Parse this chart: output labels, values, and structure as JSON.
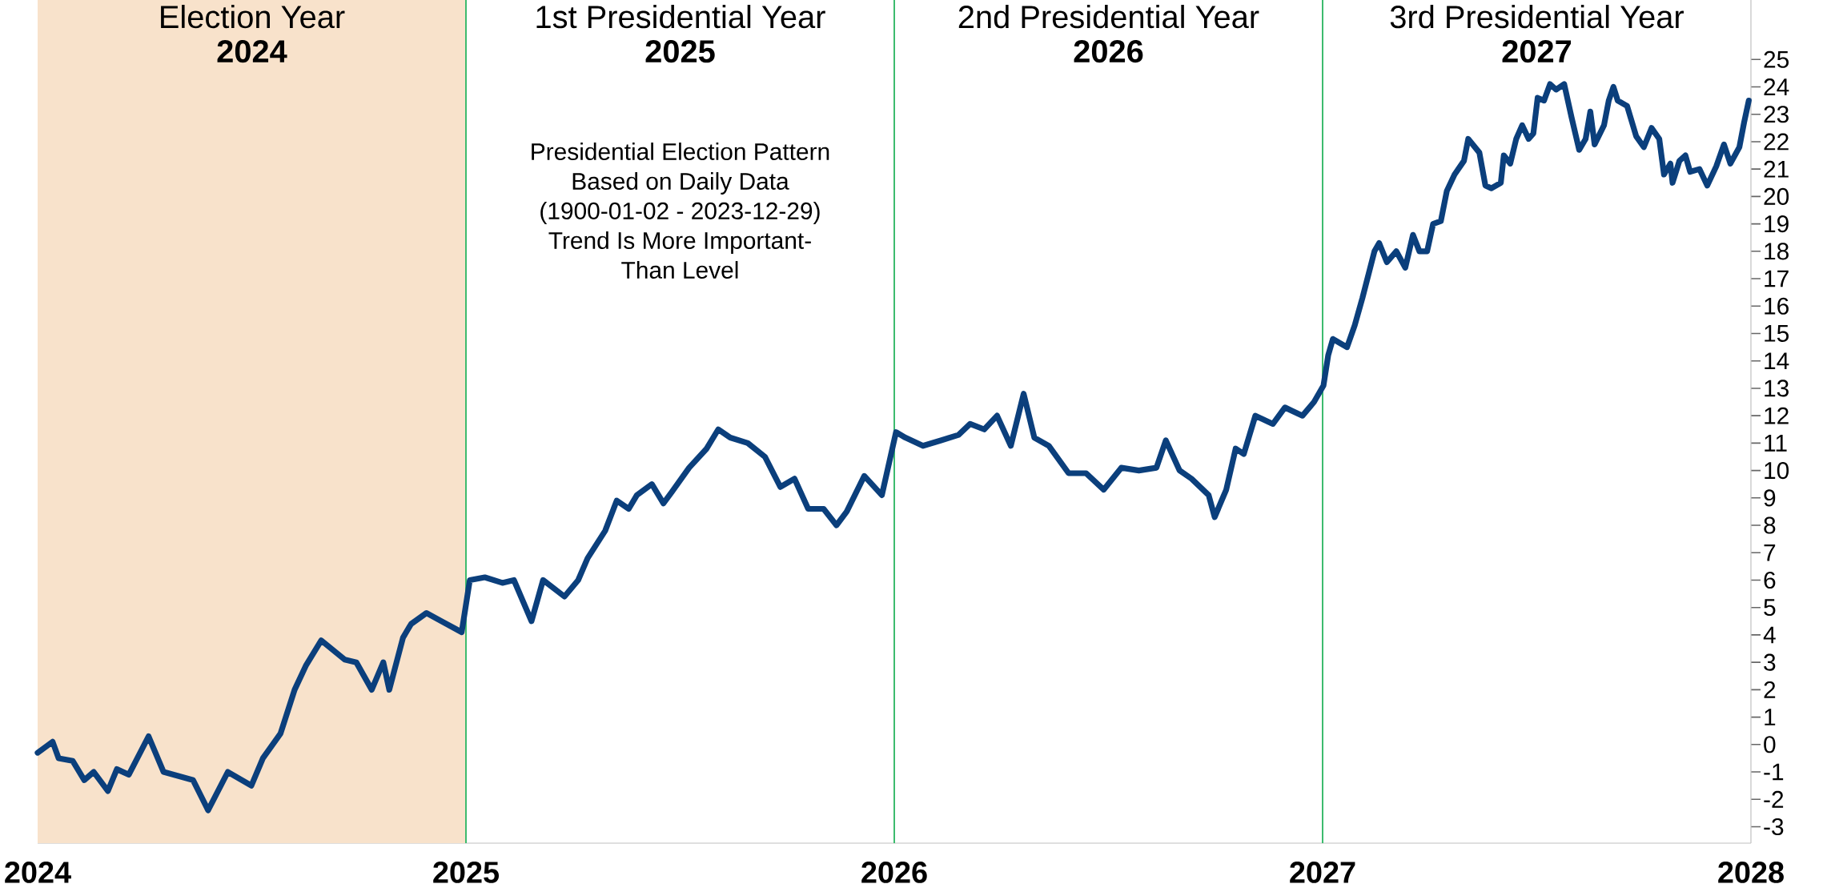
{
  "chart_data": {
    "type": "line",
    "color": "#0b3f7c",
    "x": [
      2024.0,
      2024.035,
      2024.049,
      2024.082,
      2024.109,
      2024.131,
      2024.164,
      2024.185,
      2024.213,
      2024.259,
      2024.294,
      2024.363,
      2024.398,
      2024.444,
      2024.499,
      2024.526,
      2024.567,
      2024.6,
      2024.627,
      2024.662,
      2024.717,
      2024.744,
      2024.78,
      2024.807,
      2024.821,
      2024.853,
      2024.872,
      2024.908,
      2024.943,
      2024.99,
      2025.003,
      2025.009,
      2025.044,
      2025.085,
      2025.112,
      2025.153,
      2025.18,
      2025.23,
      2025.262,
      2025.284,
      2025.325,
      2025.352,
      2025.38,
      2025.399,
      2025.434,
      2025.461,
      2025.48,
      2025.521,
      2025.562,
      2025.589,
      2025.617,
      2025.658,
      2025.698,
      2025.734,
      2025.767,
      2025.799,
      2025.835,
      2025.865,
      2025.889,
      2025.93,
      2025.971,
      2026.004,
      2026.026,
      2026.067,
      2026.109,
      2026.15,
      2026.177,
      2026.21,
      2026.24,
      2026.272,
      2026.302,
      2026.327,
      2026.361,
      2026.407,
      2026.448,
      2026.489,
      2026.53,
      2026.571,
      2026.612,
      2026.634,
      2026.666,
      2026.694,
      2026.734,
      2026.748,
      2026.775,
      2026.797,
      2026.816,
      2026.843,
      2026.884,
      2026.912,
      2026.953,
      2026.98,
      2027.002,
      2027.013,
      2027.024,
      2027.057,
      2027.075,
      2027.093,
      2027.121,
      2027.132,
      2027.15,
      2027.172,
      2027.193,
      2027.211,
      2027.226,
      2027.244,
      2027.258,
      2027.276,
      2027.29,
      2027.308,
      2027.33,
      2027.34,
      2027.366,
      2027.38,
      2027.394,
      2027.416,
      2027.423,
      2027.438,
      2027.452,
      2027.466,
      2027.481,
      2027.492,
      2027.502,
      2027.517,
      2027.531,
      2027.545,
      2027.564,
      2027.581,
      2027.599,
      2027.614,
      2027.625,
      2027.635,
      2027.657,
      2027.668,
      2027.679,
      2027.689,
      2027.711,
      2027.732,
      2027.75,
      2027.768,
      2027.786,
      2027.797,
      2027.812,
      2027.817,
      2027.833,
      2027.847,
      2027.858,
      2027.88,
      2027.898,
      2027.919,
      2027.937,
      2027.952,
      2027.973,
      2027.984,
      2027.995
    ],
    "values": [
      -0.3,
      0.1,
      -0.5,
      -0.6,
      -1.3,
      -1.0,
      -1.7,
      -0.9,
      -1.1,
      0.3,
      -1.0,
      -1.3,
      -2.4,
      -1.0,
      -1.5,
      -0.5,
      0.4,
      2.0,
      2.9,
      3.8,
      3.1,
      3.0,
      2.0,
      3.0,
      2.0,
      3.9,
      4.4,
      4.8,
      4.5,
      4.1,
      5.4,
      6.0,
      6.1,
      5.9,
      6.0,
      4.5,
      6.0,
      5.4,
      6.0,
      6.8,
      7.8,
      8.9,
      8.6,
      9.1,
      9.5,
      8.8,
      9.2,
      10.1,
      10.8,
      11.5,
      11.2,
      11.0,
      10.5,
      9.4,
      9.7,
      8.6,
      8.6,
      8.0,
      8.5,
      9.8,
      9.1,
      11.4,
      11.2,
      10.9,
      11.1,
      11.3,
      11.7,
      11.5,
      12.0,
      10.9,
      12.8,
      11.2,
      10.9,
      9.9,
      9.9,
      9.3,
      10.1,
      10.0,
      10.1,
      11.1,
      10.0,
      9.7,
      9.1,
      8.3,
      9.3,
      10.8,
      10.6,
      12.0,
      11.7,
      12.3,
      12.0,
      12.5,
      13.1,
      14.2,
      14.8,
      14.5,
      15.3,
      16.3,
      18.0,
      18.3,
      17.6,
      18.0,
      17.4,
      18.6,
      18.0,
      18.0,
      19.0,
      19.1,
      20.2,
      20.8,
      21.3,
      22.1,
      21.6,
      20.4,
      20.3,
      20.5,
      21.5,
      21.2,
      22.1,
      22.6,
      22.1,
      22.3,
      23.6,
      23.5,
      24.1,
      23.9,
      24.1,
      22.9,
      21.7,
      22.1,
      23.1,
      21.9,
      22.6,
      23.5,
      24.0,
      23.5,
      23.3,
      22.2,
      21.8,
      22.5,
      22.1,
      20.8,
      21.2,
      20.5,
      21.3,
      21.5,
      20.9,
      21.0,
      20.4,
      21.1,
      21.9,
      21.2,
      21.8,
      22.7,
      23.5
    ],
    "xlim": [
      2024,
      2028
    ],
    "ylim": [
      -3.6,
      27.2
    ],
    "xticks": [
      2024,
      2025,
      2026,
      2027,
      2028
    ],
    "yticks": [
      -3,
      -2,
      -1,
      0,
      1,
      2,
      3,
      4,
      5,
      6,
      7,
      8,
      9,
      10,
      11,
      12,
      13,
      14,
      15,
      16,
      17,
      18,
      19,
      20,
      21,
      22,
      23,
      24,
      25
    ],
    "bands": [
      {
        "axis": "x",
        "from": 2024,
        "to": 2025,
        "color": "#f8e2cb"
      }
    ],
    "ref_lines": [
      {
        "axis": "x",
        "value": 2025,
        "color": "#3dbb6e"
      },
      {
        "axis": "x",
        "value": 2026,
        "color": "#3dbb6e"
      },
      {
        "axis": "x",
        "value": 2027,
        "color": "#3dbb6e"
      }
    ],
    "annotations": [
      "Election Year",
      "2024",
      "1st Presidential Year",
      "2025",
      "2nd Presidential Year",
      "2026",
      "3rd Presidential Year",
      "2027",
      "Presidential Election Pattern",
      "Based on Daily Data",
      "(1900-01-02 - 2023-12-29)",
      "Trend Is More Important-",
      "Than Level"
    ]
  }
}
